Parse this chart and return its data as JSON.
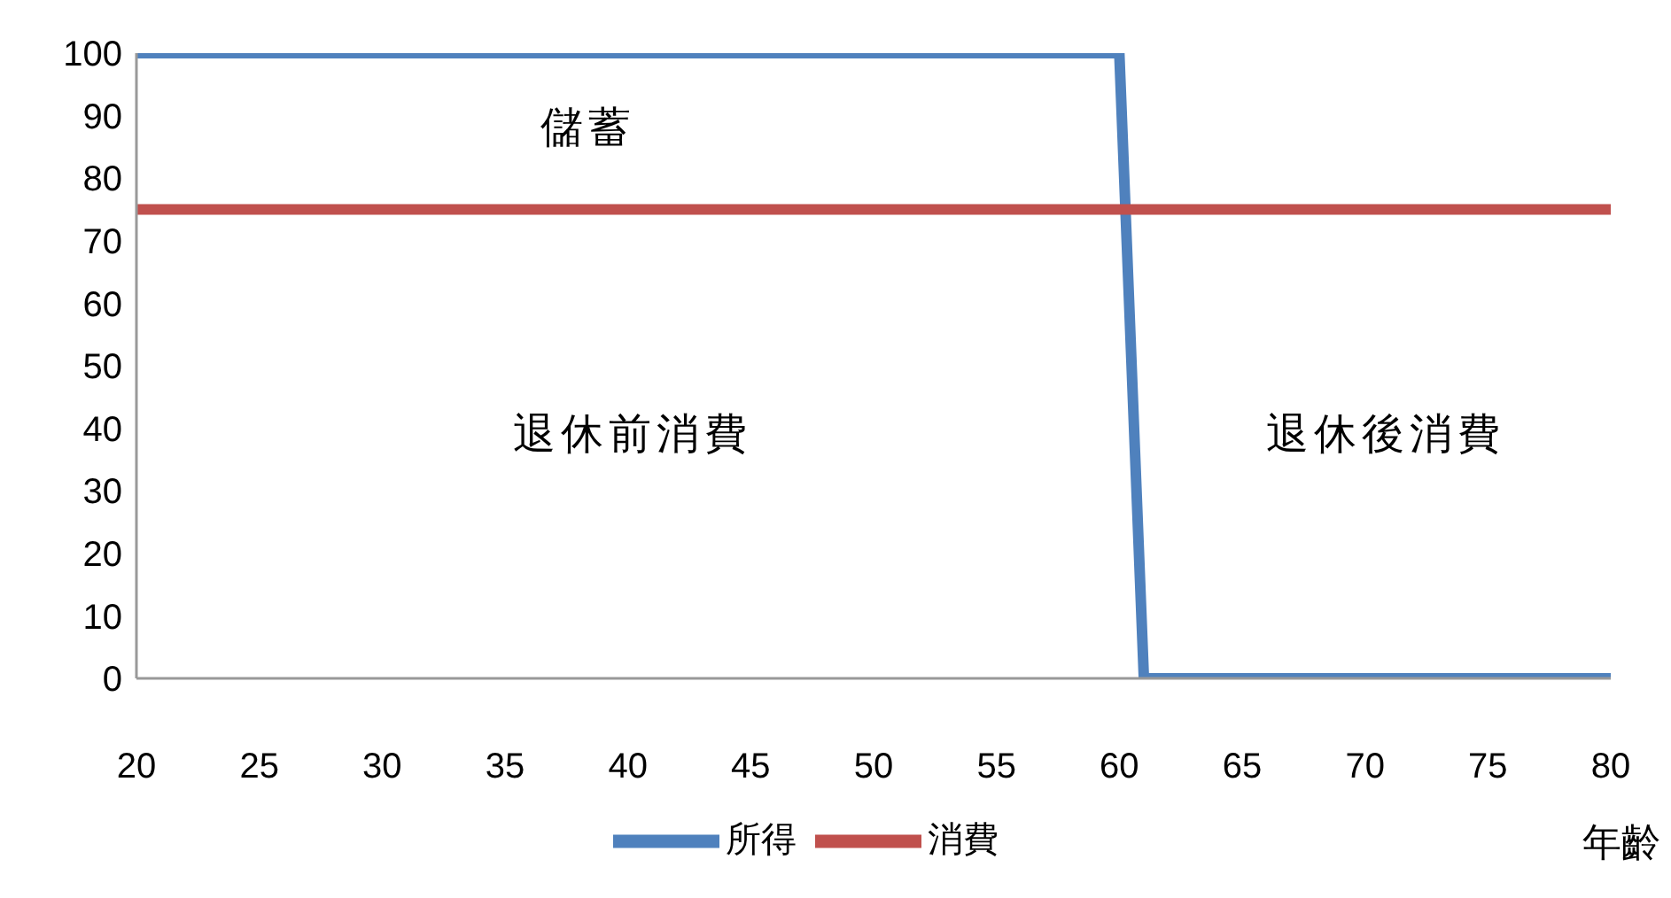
{
  "chart_data": {
    "type": "line",
    "xlabel": "年齡",
    "xlim": [
      20,
      80
    ],
    "xticks": [
      20,
      25,
      30,
      35,
      40,
      45,
      50,
      55,
      60,
      65,
      70,
      75,
      80
    ],
    "ylim": [
      0,
      100
    ],
    "yticks": [
      0,
      10,
      20,
      30,
      40,
      50,
      60,
      70,
      80,
      90,
      100
    ],
    "series": [
      {
        "name": "所得",
        "color": "#4f81bd",
        "x": [
          20,
          60,
          61,
          80
        ],
        "values": [
          100,
          100,
          0,
          0
        ]
      },
      {
        "name": "消費",
        "color": "#c0504d",
        "x": [
          20,
          80
        ],
        "values": [
          75,
          75
        ]
      }
    ],
    "annotations": [
      "儲蓄",
      "退休前消費",
      "退休後消費"
    ],
    "grid": false,
    "legend": "bottom",
    "marker": "none",
    "line_style": "solid"
  }
}
